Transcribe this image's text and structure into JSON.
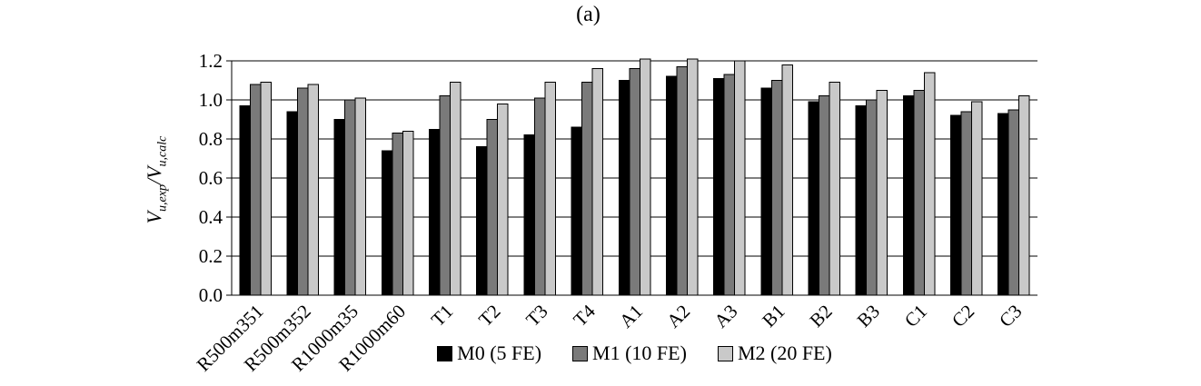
{
  "title": "(a)",
  "y_axis": {
    "label_parts": {
      "num_base": "V",
      "num_sub": "u,exp",
      "slash": "/",
      "den_base": "V",
      "den_sub": "u,calc"
    },
    "ticks": [
      "0.0",
      "0.2",
      "0.4",
      "0.6",
      "0.8",
      "1.0",
      "1.2"
    ]
  },
  "legend": [
    {
      "label": "M0 (5 FE)",
      "color": "#000000"
    },
    {
      "label": "M1 (10 FE)",
      "color": "#7a7a7a"
    },
    {
      "label": "M2 (20 FE)",
      "color": "#c9c9c9"
    }
  ],
  "chart_data": {
    "type": "bar",
    "title": "(a)",
    "ylabel": "V_{u,exp}/V_{u,calc}",
    "xlabel": "",
    "ylim": [
      0,
      1.2
    ],
    "ytick_step": 0.2,
    "grid": true,
    "legend_position": "bottom",
    "categories": [
      "R500m351",
      "R500m352",
      "R1000m35",
      "R1000m60",
      "T1",
      "T2",
      "T3",
      "T4",
      "A1",
      "A2",
      "A3",
      "B1",
      "B2",
      "B3",
      "C1",
      "C2",
      "C3"
    ],
    "series": [
      {
        "name": "M0 (5 FE)",
        "color": "#000000",
        "values": [
          0.97,
          0.94,
          0.9,
          0.74,
          0.85,
          0.76,
          0.82,
          0.86,
          1.1,
          1.12,
          1.11,
          1.06,
          0.99,
          0.97,
          1.02,
          0.92,
          0.93
        ]
      },
      {
        "name": "M1 (10 FE)",
        "color": "#7a7a7a",
        "values": [
          1.08,
          1.06,
          1.0,
          0.83,
          1.02,
          0.9,
          1.01,
          1.09,
          1.16,
          1.17,
          1.13,
          1.1,
          1.02,
          1.0,
          1.05,
          0.94,
          0.95
        ]
      },
      {
        "name": "M2 (20 FE)",
        "color": "#c9c9c9",
        "values": [
          1.09,
          1.08,
          1.01,
          0.84,
          1.09,
          0.98,
          1.09,
          1.16,
          1.21,
          1.21,
          1.2,
          1.18,
          1.09,
          1.05,
          1.14,
          0.99,
          1.02
        ]
      }
    ]
  }
}
